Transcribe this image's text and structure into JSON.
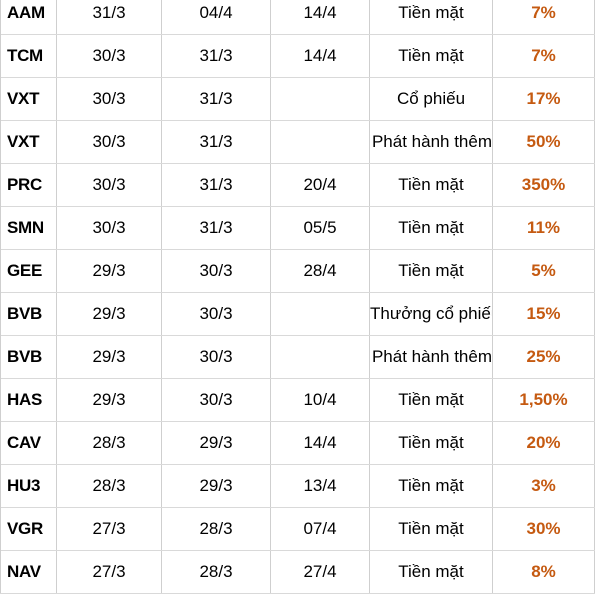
{
  "rows": [
    {
      "ticker": "AAM",
      "d1": "31/3",
      "d2": "04/4",
      "d3": "14/4",
      "type": "Tiền mặt",
      "rate": "7%"
    },
    {
      "ticker": "TCM",
      "d1": "30/3",
      "d2": "31/3",
      "d3": "14/4",
      "type": "Tiền mặt",
      "rate": "7%"
    },
    {
      "ticker": "VXT",
      "d1": "30/3",
      "d2": "31/3",
      "d3": "",
      "type": "Cổ phiếu",
      "rate": "17%"
    },
    {
      "ticker": "VXT",
      "d1": "30/3",
      "d2": "31/3",
      "d3": "",
      "type": "Phát hành thêm",
      "rate": "50%"
    },
    {
      "ticker": "PRC",
      "d1": "30/3",
      "d2": "31/3",
      "d3": "20/4",
      "type": "Tiền mặt",
      "rate": "350%"
    },
    {
      "ticker": "SMN",
      "d1": "30/3",
      "d2": "31/3",
      "d3": "05/5",
      "type": "Tiền mặt",
      "rate": "11%"
    },
    {
      "ticker": "GEE",
      "d1": "29/3",
      "d2": "30/3",
      "d3": "28/4",
      "type": "Tiền mặt",
      "rate": "5%"
    },
    {
      "ticker": "BVB",
      "d1": "29/3",
      "d2": "30/3",
      "d3": "",
      "type": "Thưởng cổ phiếu",
      "rate": "15%"
    },
    {
      "ticker": "BVB",
      "d1": "29/3",
      "d2": "30/3",
      "d3": "",
      "type": "Phát hành thêm",
      "rate": "25%"
    },
    {
      "ticker": "HAS",
      "d1": "29/3",
      "d2": "30/3",
      "d3": "10/4",
      "type": "Tiền mặt",
      "rate": "1,50%"
    },
    {
      "ticker": "CAV",
      "d1": "28/3",
      "d2": "29/3",
      "d3": "14/4",
      "type": "Tiền mặt",
      "rate": "20%"
    },
    {
      "ticker": "HU3",
      "d1": "28/3",
      "d2": "29/3",
      "d3": "13/4",
      "type": "Tiền mặt",
      "rate": "3%"
    },
    {
      "ticker": "VGR",
      "d1": "27/3",
      "d2": "28/3",
      "d3": "07/4",
      "type": "Tiền mặt",
      "rate": "30%"
    },
    {
      "ticker": "NAV",
      "d1": "27/3",
      "d2": "28/3",
      "d3": "27/4",
      "type": "Tiền mặt",
      "rate": "8%"
    }
  ],
  "colors": {
    "rate_text": "#c55a11",
    "gridline": "#cfcfcf"
  }
}
